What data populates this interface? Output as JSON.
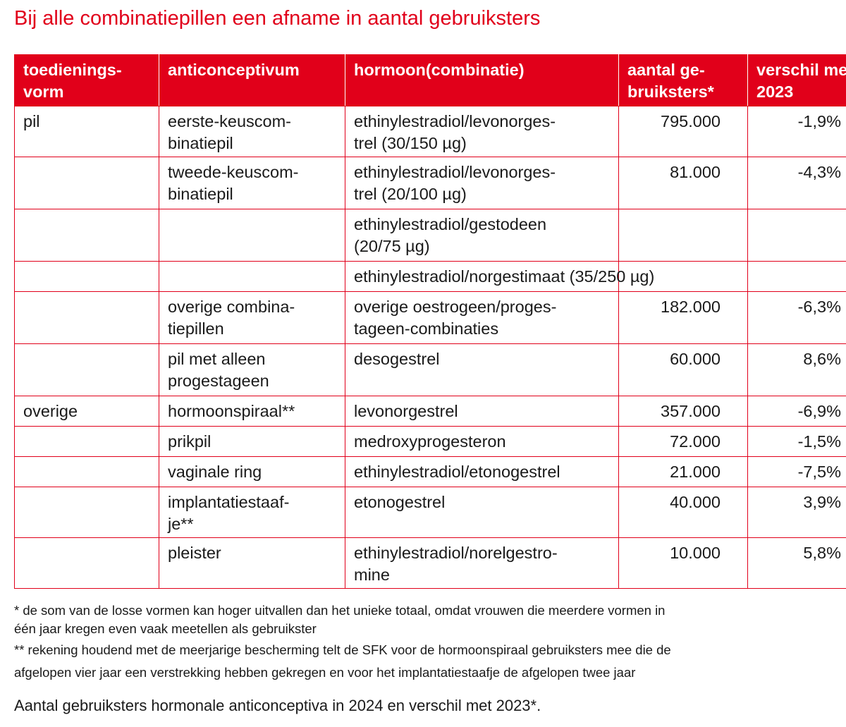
{
  "title": "Bij alle combinatiepillen een afname in aantal gebruiksters",
  "table": {
    "header": [
      [
        "toedienings-",
        "vorm"
      ],
      [
        "anticonceptivum"
      ],
      [
        "hormoon(combinatie)"
      ],
      [
        "aantal ge-",
        "bruiksters*"
      ],
      [
        "verschil met",
        "2023"
      ]
    ],
    "rows": [
      [
        [
          "pil"
        ],
        [
          "eerste-keuscom-",
          "binatiepil"
        ],
        [
          "ethinylestradiol/levonorges-",
          "trel (30/150 µg)"
        ],
        [
          "795.000"
        ],
        [
          "-1,9%"
        ]
      ],
      [
        null,
        [
          "tweede-keuscom-",
          "binatiepil"
        ],
        [
          "ethinylestradiol/levonorges-",
          "trel (20/100 µg)"
        ],
        [
          "81.000"
        ],
        [
          "-4,3%"
        ]
      ],
      [
        null,
        null,
        [
          "ethinylestradiol/gestodeen",
          "(20/75 µg)"
        ],
        null,
        null
      ],
      [
        null,
        null,
        [
          "ethinylestradiol/norgestimaat (35/250 µg)"
        ],
        null,
        null
      ],
      [
        null,
        [
          "overige combina-",
          "tiepillen"
        ],
        [
          "overige oestrogeen/proges-",
          "tageen-combinaties"
        ],
        [
          "182.000"
        ],
        [
          "-6,3%"
        ]
      ],
      [
        null,
        [
          "pil met alleen",
          "progestageen"
        ],
        [
          "desogestrel"
        ],
        [
          "60.000"
        ],
        [
          "8,6%"
        ]
      ],
      [
        [
          "overige"
        ],
        [
          "hormoonspiraal**"
        ],
        [
          "levonorgestrel"
        ],
        [
          "357.000"
        ],
        [
          "-6,9%"
        ]
      ],
      [
        null,
        [
          "prikpil"
        ],
        [
          "medroxyprogesteron"
        ],
        [
          "72.000"
        ],
        [
          "-1,5%"
        ]
      ],
      [
        null,
        [
          "vaginale ring"
        ],
        [
          "ethinylestradiol/etonogestrel"
        ],
        [
          "21.000"
        ],
        [
          "-7,5%"
        ]
      ],
      [
        null,
        [
          "implantatiestaaf-",
          "je**"
        ],
        [
          "etonogestrel"
        ],
        [
          "40.000"
        ],
        [
          "3,9%"
        ]
      ],
      [
        null,
        [
          "pleister"
        ],
        [
          "ethinylestradiol/norelgestro-",
          "mine"
        ],
        [
          "10.000"
        ],
        [
          "5,8%"
        ]
      ]
    ]
  },
  "footnotes": [
    "* de som van de losse vormen kan hoger uitvallen dan het unieke totaal, omdat vrouwen die meerdere vormen in",
    "één jaar kregen even vaak meetellen als gebruikster",
    "** rekening houdend met de meerjarige bescherming telt de SFK voor de hormoonspiraal gebruiksters mee die de",
    "afgelopen vier jaar een verstrekking hebben gekregen en voor het implantatiestaafje de afgelopen twee jaar"
  ],
  "caption": "Aantal gebruiksters hormonale anticonceptiva in 2024 en verschil met 2023*."
}
